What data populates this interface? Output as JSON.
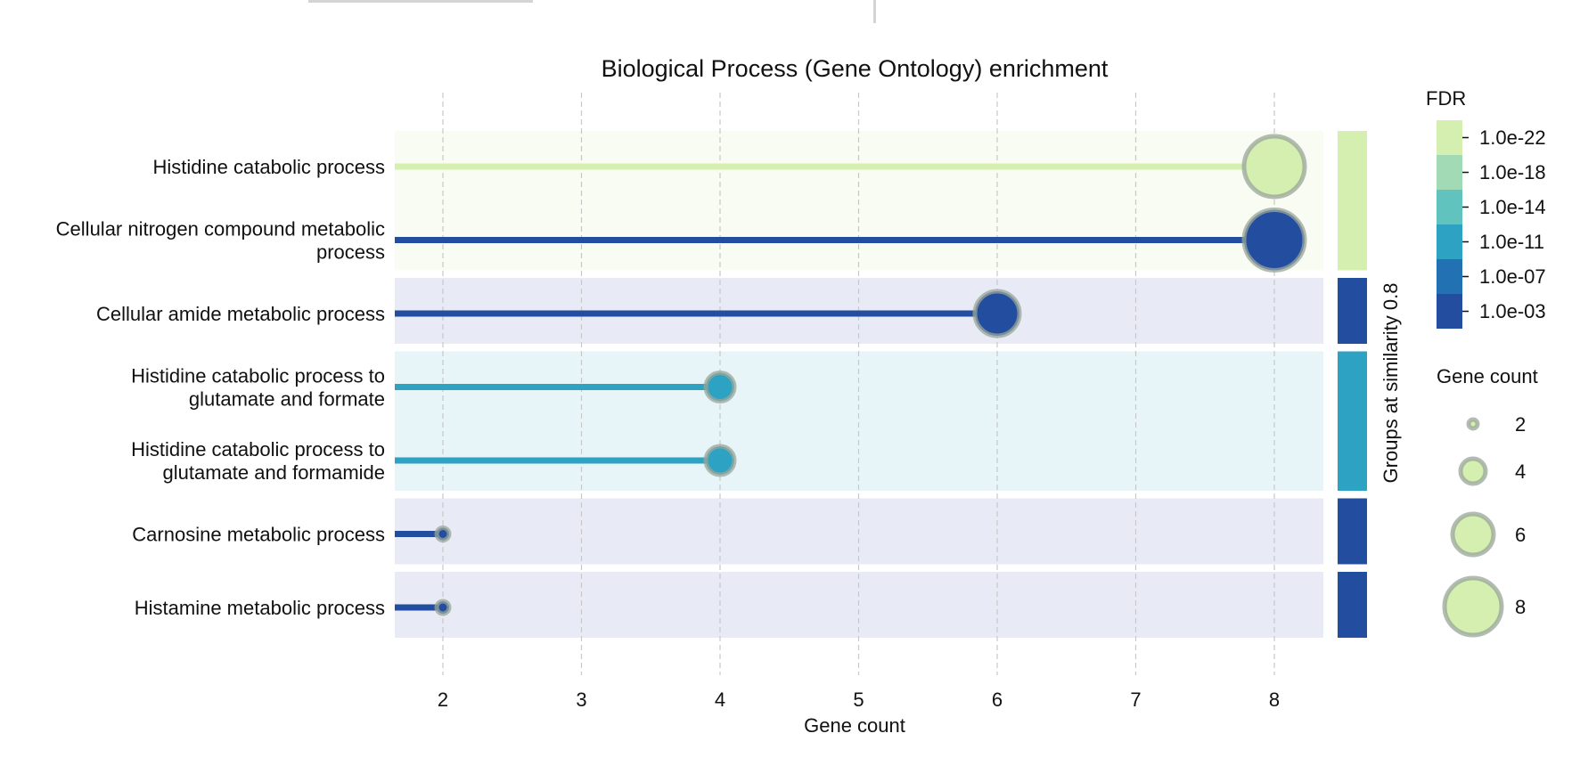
{
  "chart_data": {
    "type": "scatter",
    "title": "Biological Process (Gene Ontology) enrichment",
    "xlabel": "Gene count",
    "side_label": "Groups at similarity 0.8",
    "xlim": [
      1.65,
      8.35
    ],
    "x_ticks": [
      "2",
      "3",
      "4",
      "5",
      "6",
      "7",
      "8"
    ],
    "grid": "vertical dashed",
    "terms": [
      {
        "label": [
          "Histidine catabolic process"
        ],
        "gene_count": 8,
        "fdr": "1.0e-22",
        "color": "#d4efb0",
        "group": 1
      },
      {
        "label": [
          "Cellular nitrogen compound metabolic",
          "process"
        ],
        "gene_count": 8,
        "fdr": "1.0e-03",
        "color": "#234ea0",
        "group": 1
      },
      {
        "label": [
          "Cellular amide metabolic process"
        ],
        "gene_count": 6,
        "fdr": "1.0e-03",
        "color": "#234ea0",
        "group": 2
      },
      {
        "label": [
          "Histidine catabolic process to",
          "glutamate and formate"
        ],
        "gene_count": 4,
        "fdr": "1.0e-11",
        "color": "#2ea2c3",
        "group": 3
      },
      {
        "label": [
          "Histidine catabolic process to",
          "glutamate and formamide"
        ],
        "gene_count": 4,
        "fdr": "1.0e-11",
        "color": "#2ea2c3",
        "group": 3
      },
      {
        "label": [
          "Carnosine metabolic process"
        ],
        "gene_count": 2,
        "fdr": "1.0e-03",
        "color": "#234ea0",
        "group": 4
      },
      {
        "label": [
          "Histamine metabolic process"
        ],
        "gene_count": 2,
        "fdr": "1.0e-03",
        "color": "#234ea0",
        "group": 5
      }
    ],
    "groups": [
      {
        "id": 1,
        "color": "#d4efb0",
        "bg": "#f9fcf3"
      },
      {
        "id": 2,
        "color": "#234ea0",
        "bg": "#e8ebf5"
      },
      {
        "id": 3,
        "color": "#2ea2c3",
        "bg": "#e7f5f8"
      },
      {
        "id": 4,
        "color": "#234ea0",
        "bg": "#e8ebf5"
      },
      {
        "id": 5,
        "color": "#234ea0",
        "bg": "#e8ebf5"
      }
    ],
    "fdr_legend": {
      "title": "FDR",
      "entries": [
        {
          "label": "1.0e-22",
          "color": "#d4efb0"
        },
        {
          "label": "1.0e-18",
          "color": "#a1dab5"
        },
        {
          "label": "1.0e-14",
          "color": "#61c3be"
        },
        {
          "label": "1.0e-11",
          "color": "#2ea2c3"
        },
        {
          "label": "1.0e-07",
          "color": "#2271b3"
        },
        {
          "label": "1.0e-03",
          "color": "#234ea0"
        }
      ]
    },
    "size_legend": {
      "title": "Gene count",
      "entries": [
        {
          "label": "2",
          "value": 2
        },
        {
          "label": "4",
          "value": 4
        },
        {
          "label": "6",
          "value": 6
        },
        {
          "label": "8",
          "value": 8
        }
      ]
    }
  }
}
